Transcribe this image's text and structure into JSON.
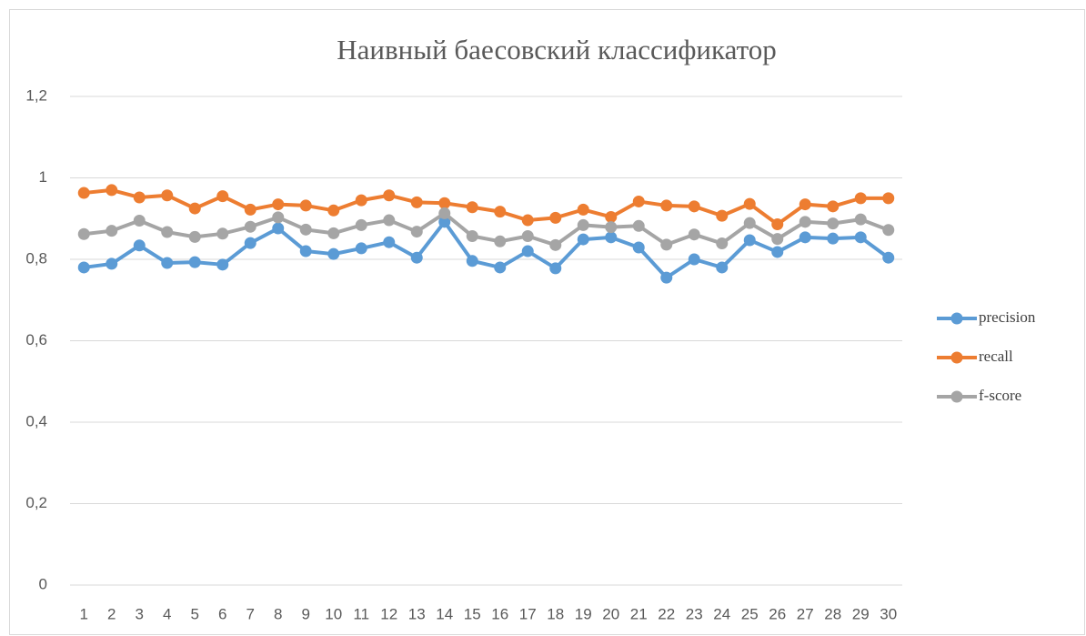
{
  "chart_data": {
    "type": "line",
    "title": "Наивный баесовский классификатор",
    "categories": [
      "1",
      "2",
      "3",
      "4",
      "5",
      "6",
      "7",
      "8",
      "9",
      "10",
      "11",
      "12",
      "13",
      "14",
      "15",
      "16",
      "17",
      "18",
      "19",
      "20",
      "21",
      "22",
      "23",
      "24",
      "25",
      "26",
      "27",
      "28",
      "29",
      "30"
    ],
    "series": [
      {
        "name": "precision",
        "color": "#5b9bd5",
        "values": [
          0.78,
          0.789,
          0.834,
          0.791,
          0.793,
          0.787,
          0.84,
          0.876,
          0.82,
          0.813,
          0.827,
          0.842,
          0.804,
          0.892,
          0.796,
          0.78,
          0.82,
          0.778,
          0.849,
          0.854,
          0.829,
          0.755,
          0.8,
          0.78,
          0.847,
          0.818,
          0.854,
          0.851,
          0.854,
          0.804
        ]
      },
      {
        "name": "recall",
        "color": "#ed7d31",
        "values": [
          0.963,
          0.97,
          0.952,
          0.957,
          0.925,
          0.955,
          0.922,
          0.935,
          0.932,
          0.92,
          0.945,
          0.957,
          0.94,
          0.938,
          0.928,
          0.917,
          0.896,
          0.902,
          0.922,
          0.904,
          0.942,
          0.932,
          0.93,
          0.907,
          0.936,
          0.886,
          0.935,
          0.93,
          0.95,
          0.95
        ]
      },
      {
        "name": "f-score",
        "color": "#a5a5a5",
        "values": [
          0.862,
          0.87,
          0.895,
          0.867,
          0.855,
          0.863,
          0.88,
          0.903,
          0.873,
          0.864,
          0.884,
          0.896,
          0.868,
          0.913,
          0.857,
          0.844,
          0.857,
          0.835,
          0.884,
          0.879,
          0.882,
          0.836,
          0.861,
          0.839,
          0.889,
          0.85,
          0.892,
          0.888,
          0.898,
          0.872
        ]
      }
    ],
    "ylim": [
      0,
      1.2
    ],
    "yticks": [
      0,
      {
        "value": 0.2,
        "label": "0,2"
      },
      {
        "value": 0.4,
        "label": "0,4"
      },
      {
        "value": 0.6,
        "label": "0,6"
      },
      {
        "value": 0.8,
        "label": "0,8"
      },
      1,
      {
        "value": 1.2,
        "label": "1,2"
      }
    ],
    "grid": true,
    "legend": "right"
  }
}
